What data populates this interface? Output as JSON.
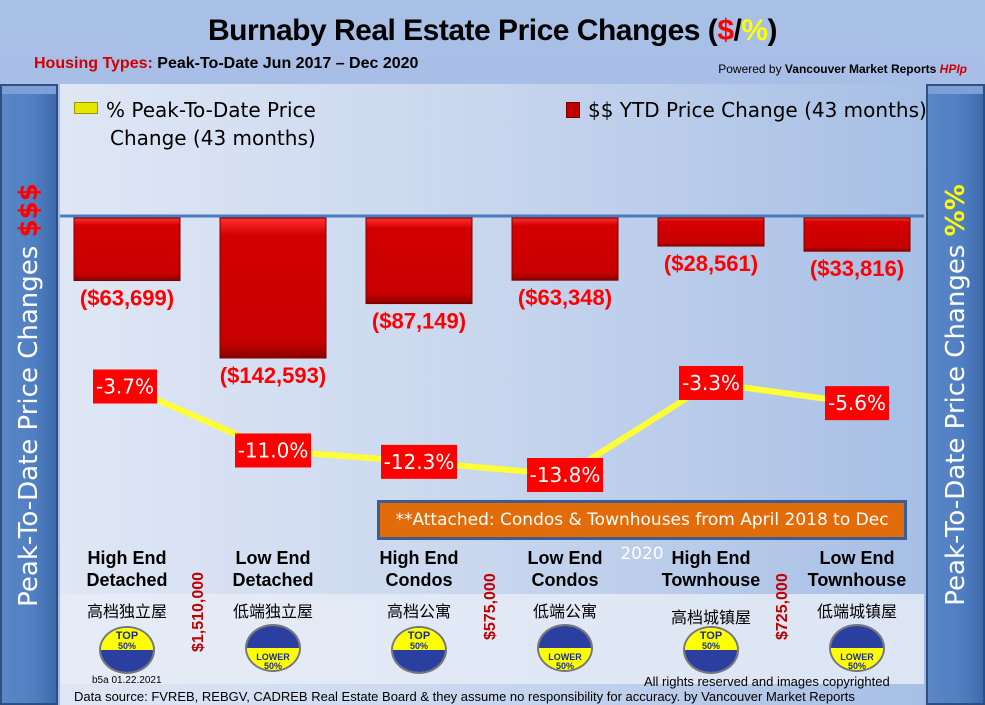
{
  "header": {
    "title_main": "Burnaby Real Estate Price Changes (",
    "title_dollar": "$",
    "title_slash": "/",
    "title_percent": "%",
    "title_close": ")",
    "subtitle_label": "Housing Types:",
    "subtitle_value": " Peak-To-Date Jun 2017 – Dec 2020",
    "powered_prefix": "Powered by ",
    "powered_brand": "Vancouver Market Reports ",
    "powered_hpi": "HPIp"
  },
  "side_panels": {
    "left_text": "Peak-To-Date Price Changes ",
    "left_symbol": "$$$",
    "right_text": "Peak-To-Date  Price  Changes ",
    "right_symbol": "%%"
  },
  "legend": {
    "pct_line1": "% Peak-To-Date Price",
    "pct_line2": "Change (43 months)",
    "usd": "$$ YTD Price Change (43 months)"
  },
  "note": "**Attached: Condos & Townhouses from April 2018 to Dec 2020",
  "categories_cn": [
    "高档独立屋",
    "低端独立屋",
    "高档公寓",
    "低端公寓",
    "高档城镇屋",
    "低端城镇屋"
  ],
  "badges": [
    {
      "line1": "TOP",
      "line2": "50%",
      "type": "top"
    },
    {
      "line1": "LOWER",
      "line2": "50%",
      "type": "lower"
    },
    {
      "line1": "TOP",
      "line2": "50%",
      "type": "top"
    },
    {
      "line1": "LOWER",
      "line2": "50%",
      "type": "lower"
    },
    {
      "line1": "TOP",
      "line2": "50%",
      "type": "top"
    },
    {
      "line1": "LOWER",
      "line2": "50%",
      "type": "lower"
    }
  ],
  "thresholds": [
    "$1,510,000",
    "$575,000",
    "$725,000"
  ],
  "footer": {
    "version": "b5a 01.22.2021",
    "rights": "All rights reserved and  images copyrighted",
    "source": "Data source: FVREB, REBGV, CADREB Real Estate Board & they assume no responsibility for accuracy. by Vancouver Market Reports"
  },
  "colors": {
    "bar": "#cc0000",
    "line": "#ffff33",
    "label_bg": "#ff0000",
    "note_bg": "#e36c0a",
    "badge_yellow": "#ffff00",
    "badge_blue": "#2b3fa0"
  },
  "chart_data": {
    "type": "bar",
    "title": "Burnaby Real Estate Price Changes ($/%)",
    "subtitle": "Housing Types: Peak-To-Date Jun 2017 – Dec 2020",
    "categories": [
      "High End Detached",
      "Low End Detached",
      "High End Condos",
      "Low End Condos",
      "High End Townhouse",
      "Low End Townhouse"
    ],
    "category_lines": [
      [
        "High End",
        "Detached"
      ],
      [
        "Low End",
        "Detached"
      ],
      [
        "High End",
        "Condos"
      ],
      [
        "Low End",
        "Condos"
      ],
      [
        "High End",
        "Townhouse"
      ],
      [
        "Low End",
        "Townhouse"
      ]
    ],
    "series": [
      {
        "name": "$$ YTD Price Change (43 months)",
        "type": "bar",
        "values": [
          -63699,
          -142593,
          -87149,
          -63348,
          -28561,
          -33816
        ],
        "labels": [
          "($63,699)",
          "($142,593)",
          "($87,149)",
          "($63,348)",
          "($28,561)",
          "($33,816)"
        ]
      },
      {
        "name": "% Peak-To-Date Price Change (43 months)",
        "type": "line",
        "values": [
          -3.7,
          -11.0,
          -12.3,
          -13.8,
          -3.3,
          -5.6
        ],
        "labels": [
          "-3.7%",
          "-11.0%",
          "-12.3%",
          "-13.8%",
          "-3.3%",
          "-5.6%"
        ]
      }
    ],
    "legend_position": "top",
    "grid": false
  }
}
